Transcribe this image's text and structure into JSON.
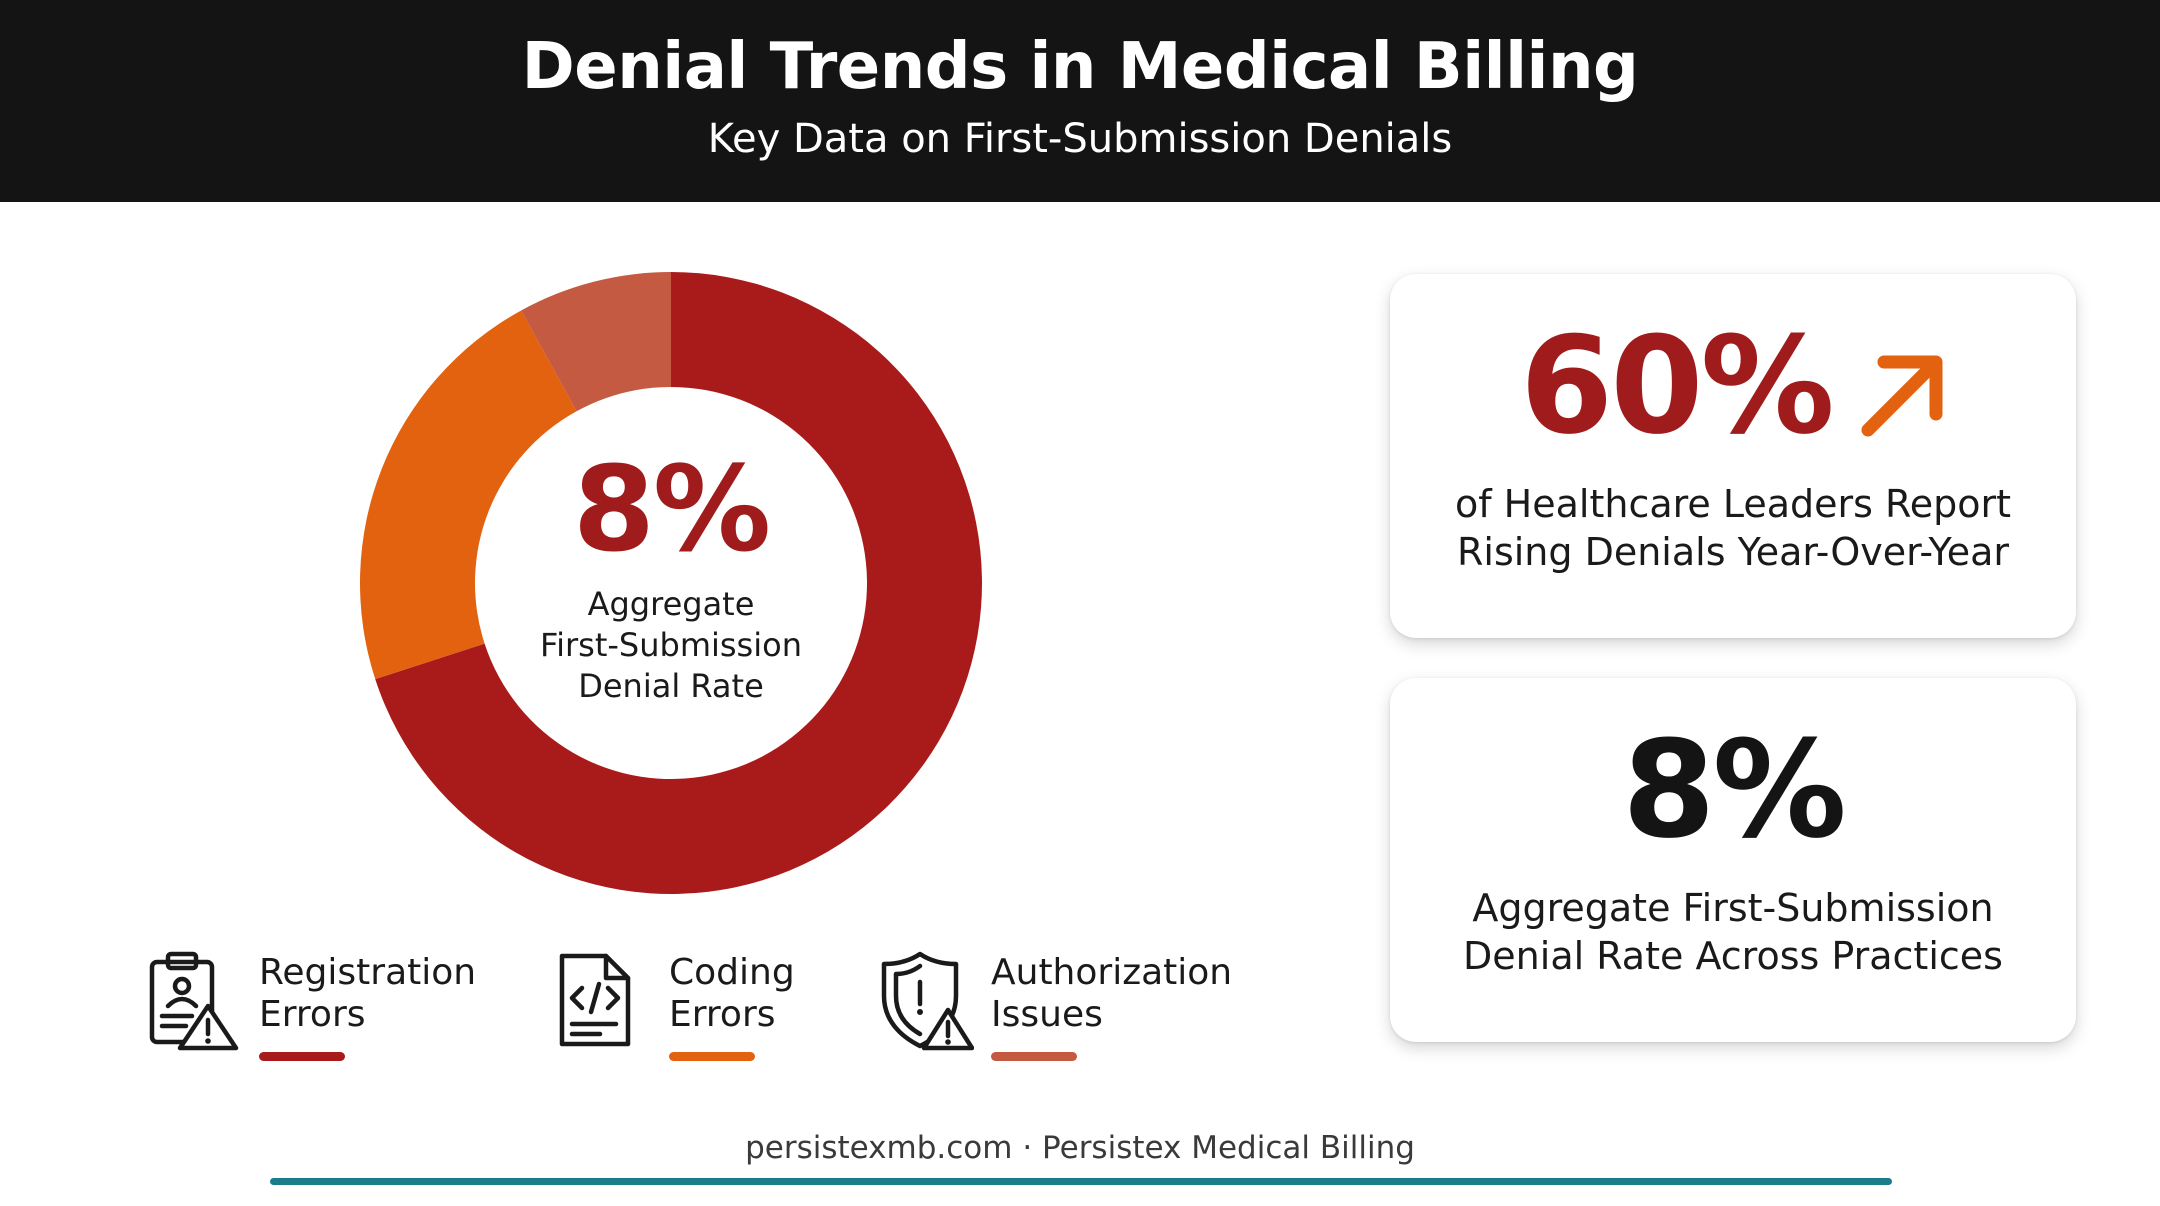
{
  "header": {
    "title": "Denial Trends in Medical Billing",
    "subtitle": "Key Data on First-Submission Denials"
  },
  "chart_data": {
    "type": "pie",
    "title": "",
    "center_value": "8%",
    "center_label_lines": [
      "Aggregate",
      "First-Submission",
      "Denial Rate"
    ],
    "slices": [
      {
        "label": "Registration Errors",
        "value": 70,
        "color": "#a91b1b"
      },
      {
        "label": "Coding Errors",
        "value": 22,
        "color": "#e2620f"
      },
      {
        "label": "Authorization Issues",
        "value": 8,
        "color": "#c45a42"
      }
    ]
  },
  "legend": {
    "items": [
      {
        "line1": "Registration",
        "line2": "Errors",
        "color": "#a91b1b",
        "icon": "clipboard-warning-icon"
      },
      {
        "line1": "Coding",
        "line2": "Errors",
        "color": "#e2620f",
        "icon": "code-document-icon"
      },
      {
        "line1": "Authorization",
        "line2": "Issues",
        "color": "#c45a42",
        "icon": "shield-warning-icon"
      }
    ]
  },
  "cards": [
    {
      "value": "60%",
      "line1": "of Healthcare Leaders Report",
      "line2": "Rising Denials Year-Over-Year",
      "value_color": "#a01c1c",
      "arrow_color": "#e2620f",
      "icon": "trend-up-arrow-icon"
    },
    {
      "value": "8%",
      "line1": "Aggregate First-Submission",
      "line2": "Denial Rate Across Practices",
      "value_color": "#141414"
    }
  ],
  "footer": {
    "text": "persistexmb.com · Persistex Medical Billing",
    "line_color": "#1b7c8c"
  }
}
